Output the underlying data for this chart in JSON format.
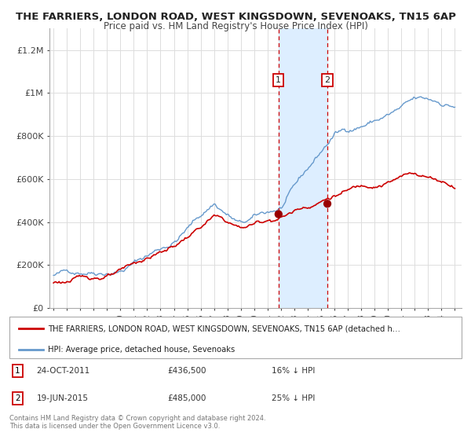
{
  "title": "THE FARRIERS, LONDON ROAD, WEST KINGSDOWN, SEVENOAKS, TN15 6AP",
  "subtitle": "Price paid vs. HM Land Registry's House Price Index (HPI)",
  "ylim": [
    0,
    1300000
  ],
  "xlim_start": 1994.7,
  "xlim_end": 2025.5,
  "background_color": "#ffffff",
  "plot_bg_color": "#ffffff",
  "grid_color": "#dddddd",
  "sale1_date": 2011.82,
  "sale1_price": 436500,
  "sale2_date": 2015.47,
  "sale2_price": 485000,
  "sale1_date_str": "24-OCT-2011",
  "sale1_price_str": "£436,500",
  "sale1_hpi_str": "16% ↓ HPI",
  "sale2_date_str": "19-JUN-2015",
  "sale2_price_str": "£485,000",
  "sale2_hpi_str": "25% ↓ HPI",
  "shaded_region_color": "#ddeeff",
  "vline_color": "#cc0000",
  "red_line_color": "#cc0000",
  "blue_line_color": "#6699cc",
  "legend_label_red": "THE FARRIERS, LONDON ROAD, WEST KINGSDOWN, SEVENOAKS, TN15 6AP (detached h…",
  "legend_label_blue": "HPI: Average price, detached house, Sevenoaks",
  "footer_text": "Contains HM Land Registry data © Crown copyright and database right 2024.\nThis data is licensed under the Open Government Licence v3.0.",
  "ytick_labels": [
    "£0",
    "£200K",
    "£400K",
    "£600K",
    "£800K",
    "£1M",
    "£1.2M"
  ],
  "ytick_values": [
    0,
    200000,
    400000,
    600000,
    800000,
    1000000,
    1200000
  ],
  "hpi_seed": 42,
  "red_seed": 123
}
